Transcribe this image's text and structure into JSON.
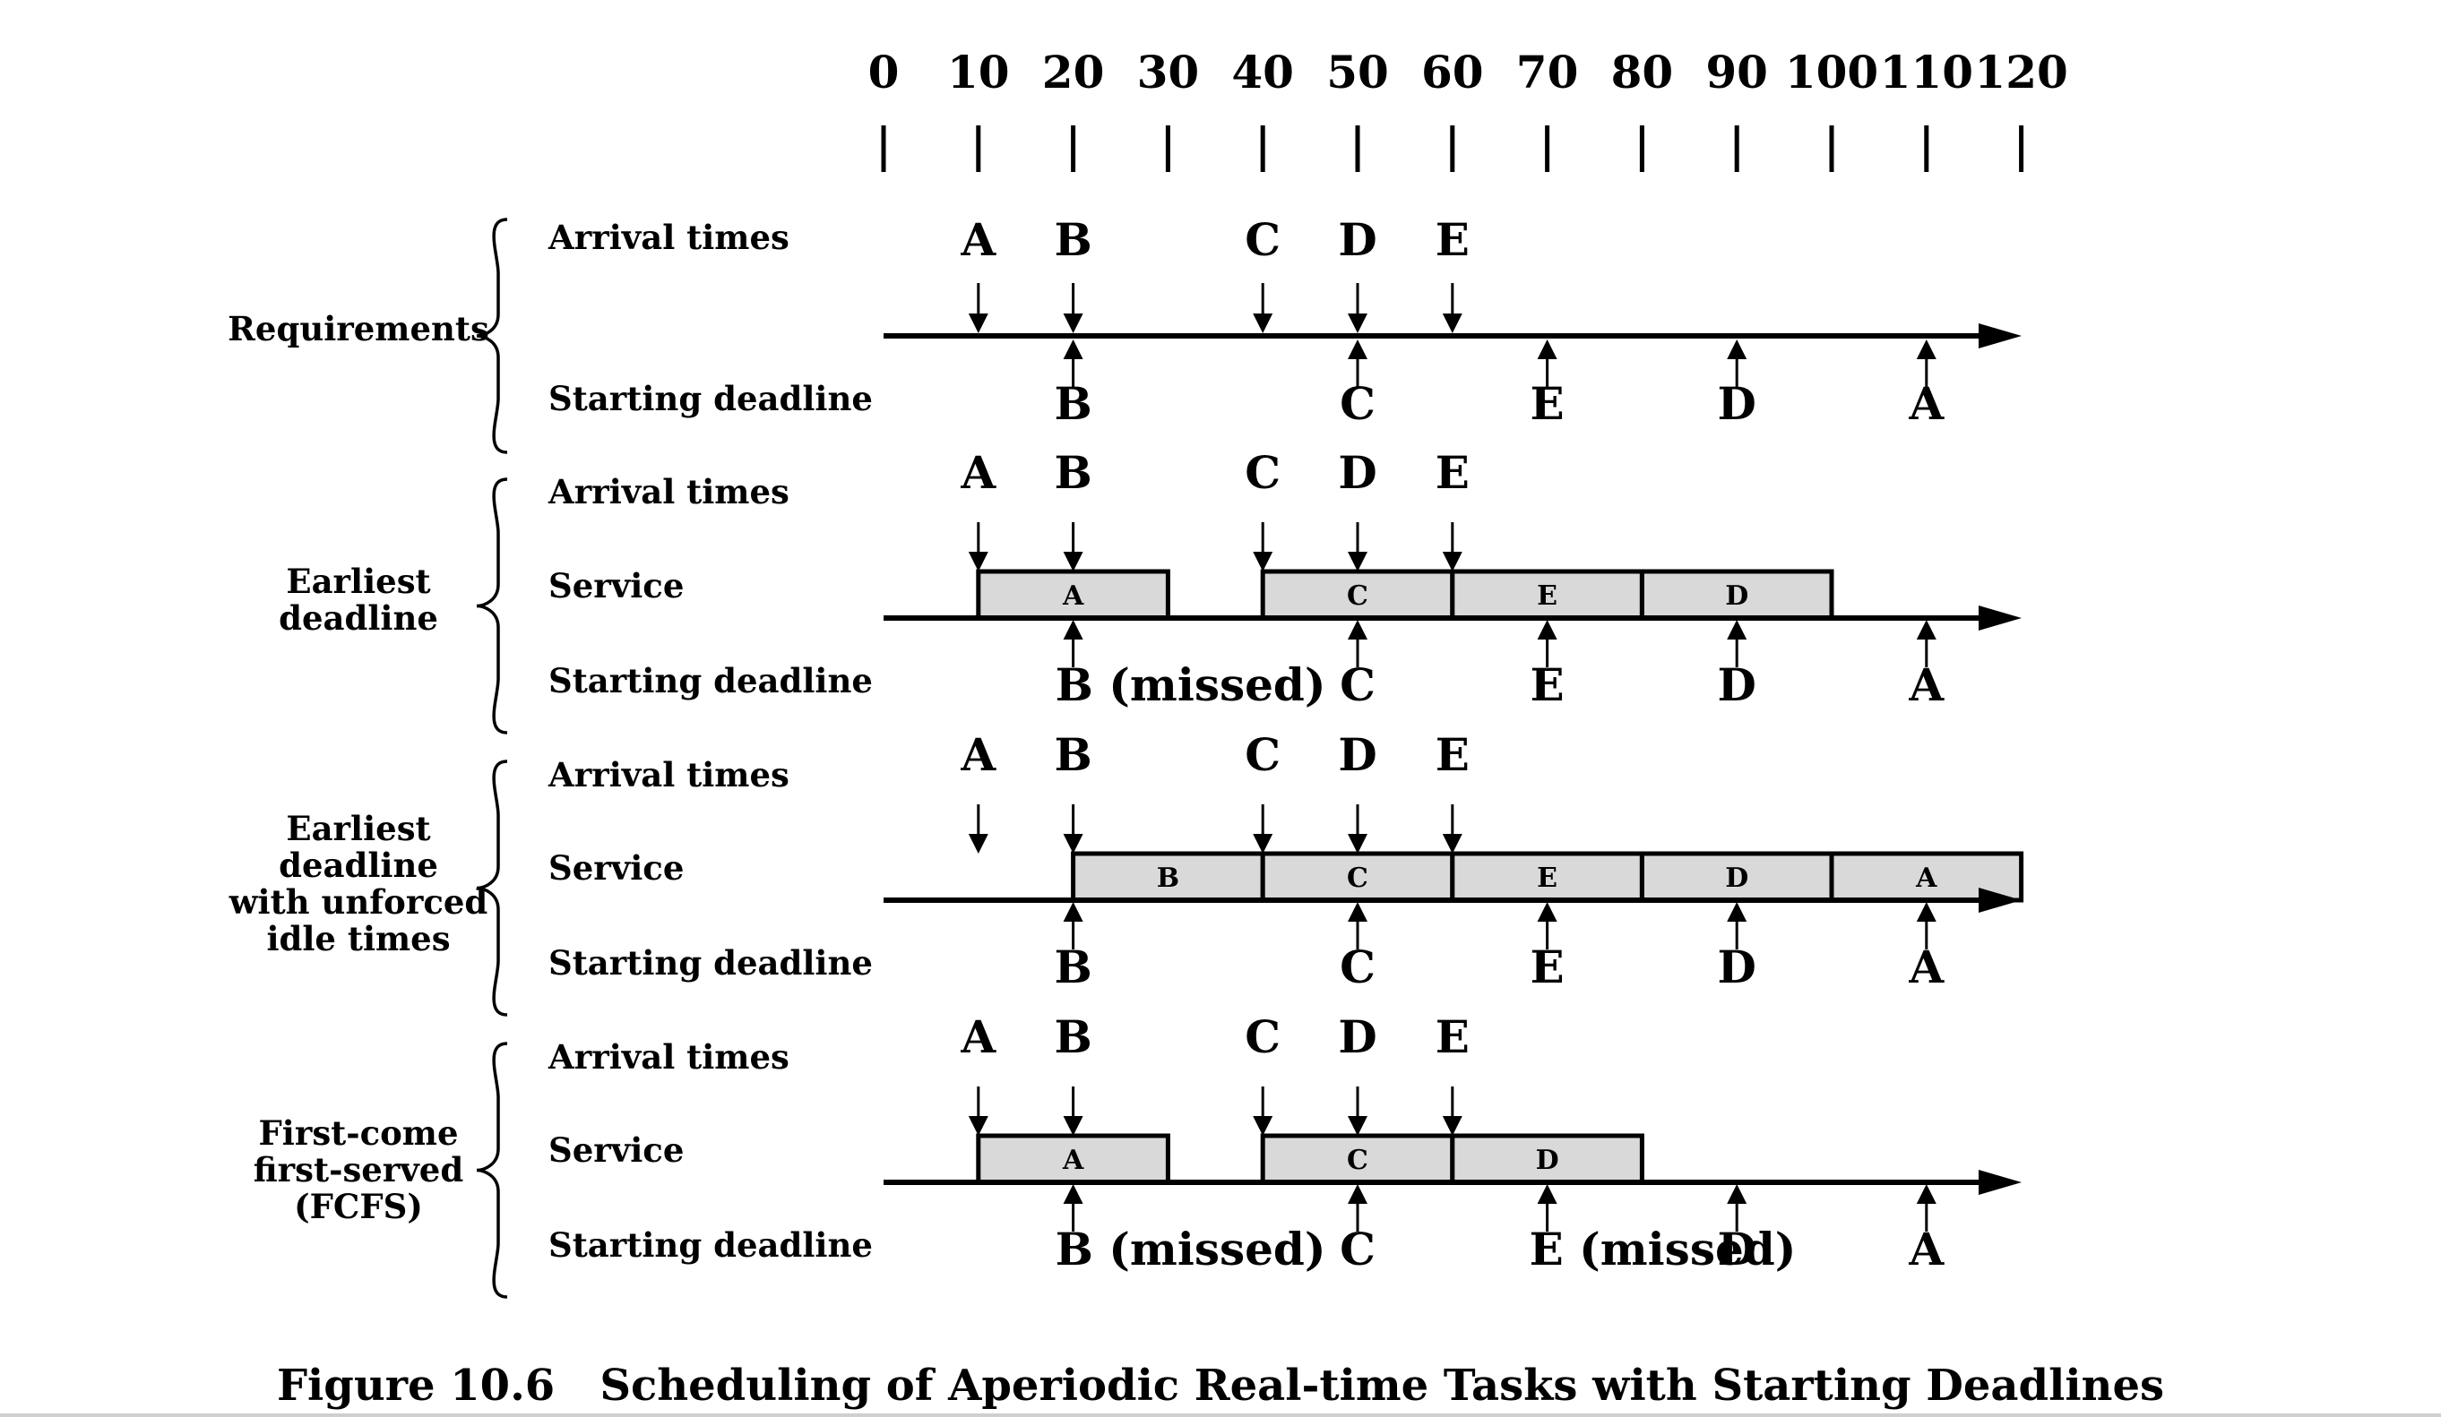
{
  "caption": "Figure 10.6   Scheduling of Aperiodic Real-time Tasks with Starting Deadlines",
  "time_ticks": [
    "0",
    "10",
    "20",
    "30",
    "40",
    "50",
    "60",
    "70",
    "80",
    "90",
    "100",
    "110",
    "120"
  ],
  "time_values": [
    0,
    10,
    20,
    30,
    40,
    50,
    60,
    70,
    80,
    90,
    100,
    110,
    120
  ],
  "row_labels": {
    "arrival": "Arrival times",
    "service": "Service",
    "deadline": "Starting deadline"
  },
  "panels": [
    {
      "group_label": [
        "Requirements"
      ],
      "has_service": false,
      "arrivals": [
        {
          "task": "A",
          "time": 10,
          "arrow": true
        },
        {
          "task": "B",
          "time": 20,
          "arrow": true
        },
        {
          "task": "C",
          "time": 40,
          "arrow": true
        },
        {
          "task": "D",
          "time": 50,
          "arrow": true
        },
        {
          "task": "E",
          "time": 60,
          "arrow": true
        }
      ],
      "service": [],
      "deadlines": [
        {
          "task": "B",
          "time": 20,
          "text": "B"
        },
        {
          "task": "C",
          "time": 50,
          "text": "C"
        },
        {
          "task": "E",
          "time": 70,
          "text": "E"
        },
        {
          "task": "D",
          "time": 90,
          "text": "D"
        },
        {
          "task": "A",
          "time": 110,
          "text": "A"
        }
      ]
    },
    {
      "group_label": [
        "Earliest",
        "deadline"
      ],
      "has_service": true,
      "arrivals": [
        {
          "task": "A",
          "time": 10,
          "arrow": true
        },
        {
          "task": "B",
          "time": 20,
          "arrow": true
        },
        {
          "task": "C",
          "time": 40,
          "arrow": true
        },
        {
          "task": "D",
          "time": 50,
          "arrow": true
        },
        {
          "task": "E",
          "time": 60,
          "arrow": true
        }
      ],
      "service": [
        {
          "task": "A",
          "start": 10,
          "end": 30
        },
        {
          "task": "C",
          "start": 40,
          "end": 60
        },
        {
          "task": "E",
          "start": 60,
          "end": 80
        },
        {
          "task": "D",
          "start": 80,
          "end": 100
        }
      ],
      "deadlines": [
        {
          "task": "B",
          "time": 20,
          "text": "B (missed)"
        },
        {
          "task": "C",
          "time": 50,
          "text": "C"
        },
        {
          "task": "E",
          "time": 70,
          "text": "E"
        },
        {
          "task": "D",
          "time": 90,
          "text": "D"
        },
        {
          "task": "A",
          "time": 110,
          "text": "A"
        }
      ]
    },
    {
      "group_label": [
        "Earliest",
        "deadline",
        "with unforced",
        "idle times"
      ],
      "has_service": true,
      "arrivals": [
        {
          "task": "A",
          "time": 10,
          "arrow": true
        },
        {
          "task": "B",
          "time": 20,
          "arrow": true
        },
        {
          "task": "C",
          "time": 40,
          "arrow": true
        },
        {
          "task": "D",
          "time": 50,
          "arrow": true
        },
        {
          "task": "E",
          "time": 60,
          "arrow": true
        }
      ],
      "service": [
        {
          "task": "B",
          "start": 20,
          "end": 40
        },
        {
          "task": "C",
          "start": 40,
          "end": 60
        },
        {
          "task": "E",
          "start": 60,
          "end": 80
        },
        {
          "task": "D",
          "start": 80,
          "end": 100
        },
        {
          "task": "A",
          "start": 100,
          "end": 120
        }
      ],
      "deadlines": [
        {
          "task": "B",
          "time": 20,
          "text": "B"
        },
        {
          "task": "C",
          "time": 50,
          "text": "C"
        },
        {
          "task": "E",
          "time": 70,
          "text": "E"
        },
        {
          "task": "D",
          "time": 90,
          "text": "D"
        },
        {
          "task": "A",
          "time": 110,
          "text": "A"
        }
      ]
    },
    {
      "group_label": [
        "First-come",
        "first-served",
        "(FCFS)"
      ],
      "has_service": true,
      "arrivals": [
        {
          "task": "A",
          "time": 10,
          "arrow": true
        },
        {
          "task": "B",
          "time": 20,
          "arrow": true
        },
        {
          "task": "C",
          "time": 40,
          "arrow": true
        },
        {
          "task": "D",
          "time": 50,
          "arrow": true
        },
        {
          "task": "E",
          "time": 60,
          "arrow": true
        }
      ],
      "service": [
        {
          "task": "A",
          "start": 10,
          "end": 30
        },
        {
          "task": "C",
          "start": 40,
          "end": 60
        },
        {
          "task": "D",
          "start": 60,
          "end": 80
        }
      ],
      "deadlines": [
        {
          "task": "B",
          "time": 20,
          "text": "B (missed)"
        },
        {
          "task": "C",
          "time": 50,
          "text": "C"
        },
        {
          "task": "E",
          "time": 70,
          "text": "E (missed)"
        },
        {
          "task": "D",
          "time": 90,
          "text": "D"
        },
        {
          "task": "A",
          "time": 110,
          "text": "A"
        }
      ]
    }
  ]
}
